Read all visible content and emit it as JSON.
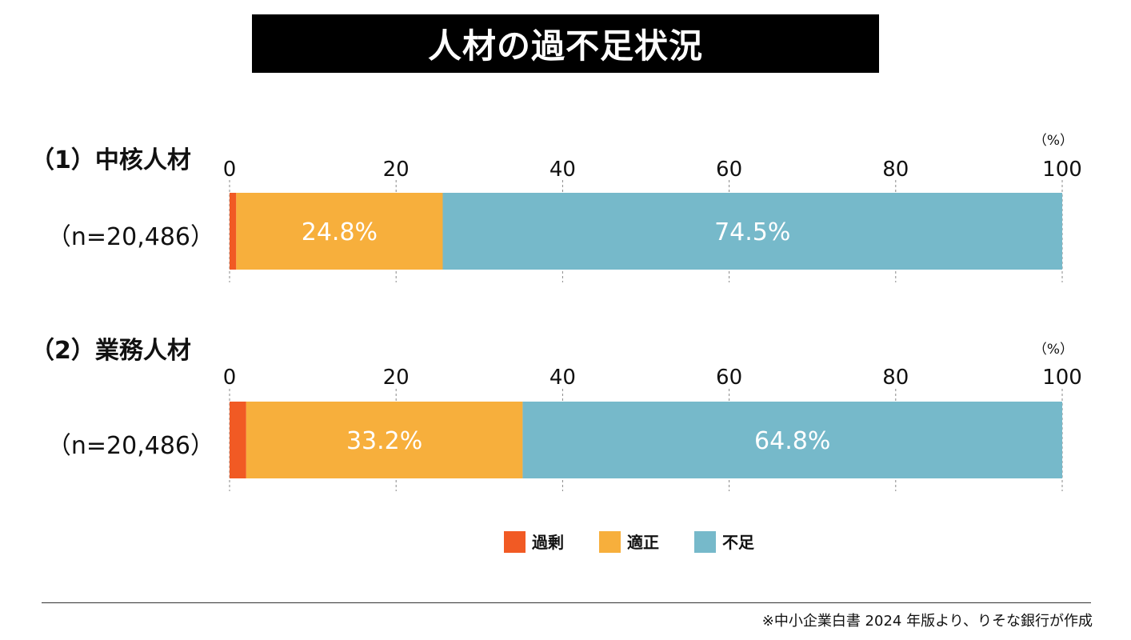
{
  "title": "人材の過不足状況",
  "colors": {
    "excess": "#F15A24",
    "appropriate": "#F7AF3C",
    "shortage": "#76B9CA"
  },
  "chart_data": [
    {
      "type": "bar",
      "orientation": "horizontal-stacked",
      "title": "（1）中核人材",
      "category": "（n=20,486）",
      "unit": "（%）",
      "xlim": [
        0,
        100
      ],
      "xticks": [
        "0",
        "20",
        "40",
        "60",
        "80",
        "100"
      ],
      "series": [
        {
          "name": "過剰",
          "value": 0.8,
          "label": ""
        },
        {
          "name": "適正",
          "value": 24.8,
          "label": "24.8%"
        },
        {
          "name": "不足",
          "value": 74.5,
          "label": "74.5%"
        }
      ]
    },
    {
      "type": "bar",
      "orientation": "horizontal-stacked",
      "title": "（2）業務人材",
      "category": "（n=20,486）",
      "unit": "（%）",
      "xlim": [
        0,
        100
      ],
      "xticks": [
        "0",
        "20",
        "40",
        "60",
        "80",
        "100"
      ],
      "series": [
        {
          "name": "過剰",
          "value": 2.0,
          "label": ""
        },
        {
          "name": "適正",
          "value": 33.2,
          "label": "33.2%"
        },
        {
          "name": "不足",
          "value": 64.8,
          "label": "64.8%"
        }
      ]
    }
  ],
  "legend": [
    {
      "name": "過剰",
      "color_key": "excess"
    },
    {
      "name": "適正",
      "color_key": "appropriate"
    },
    {
      "name": "不足",
      "color_key": "shortage"
    }
  ],
  "source": "※中小企業白書 2024 年版より、りそな銀行が作成"
}
